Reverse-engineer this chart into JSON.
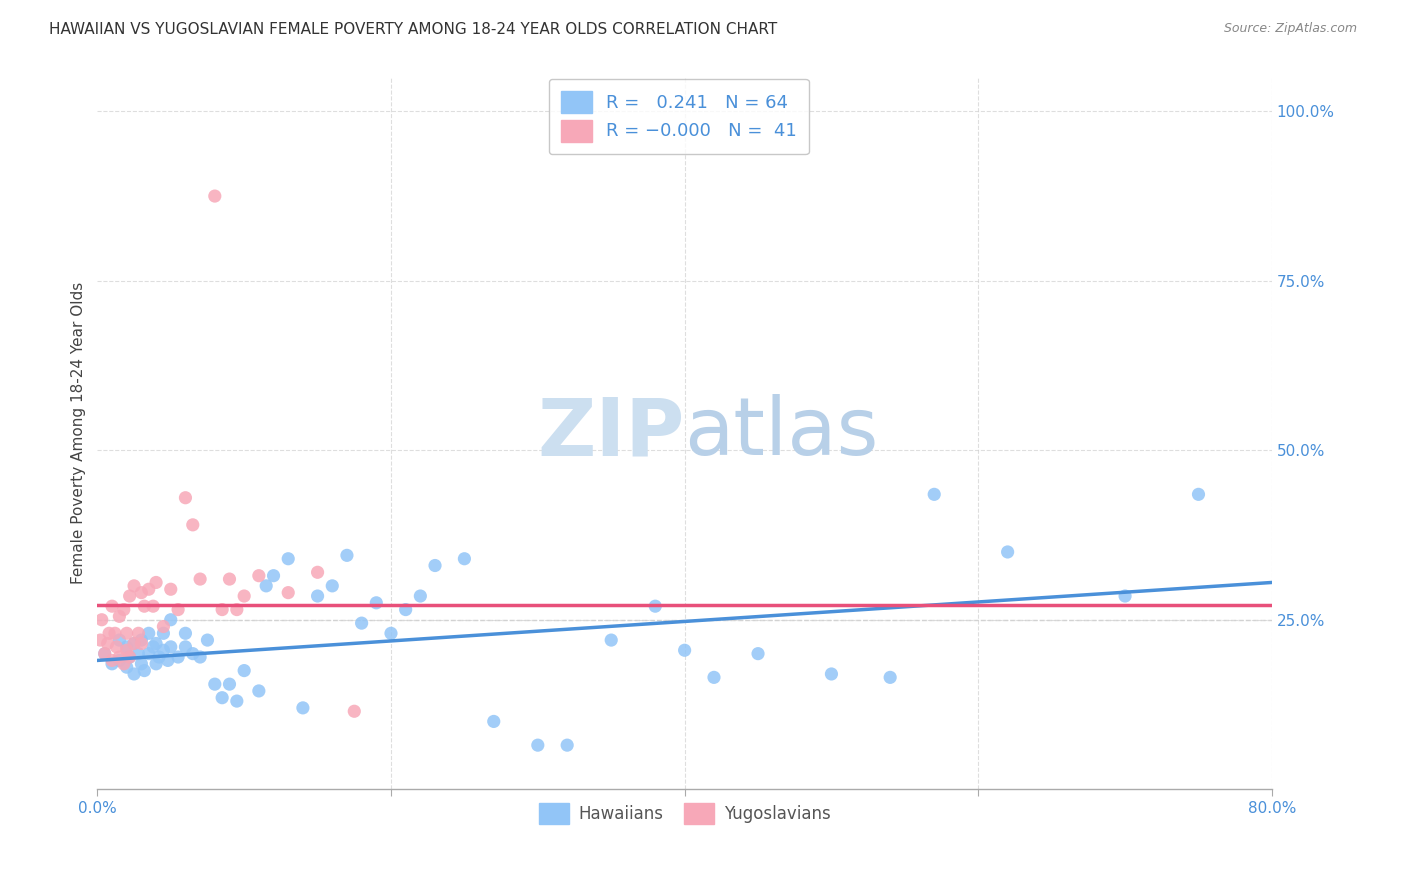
{
  "title": "HAWAIIAN VS YUGOSLAVIAN FEMALE POVERTY AMONG 18-24 YEAR OLDS CORRELATION CHART",
  "source": "Source: ZipAtlas.com",
  "ylabel": "Female Poverty Among 18-24 Year Olds",
  "xlim": [
    0.0,
    0.8
  ],
  "ylim": [
    0.0,
    1.05
  ],
  "x_ticks": [
    0.0,
    0.2,
    0.4,
    0.6,
    0.8
  ],
  "x_tick_labels": [
    "0.0%",
    "",
    "",
    "",
    "80.0%"
  ],
  "y_ticks_right": [
    0.25,
    0.5,
    0.75,
    1.0
  ],
  "y_tick_labels_right": [
    "25.0%",
    "50.0%",
    "75.0%",
    "100.0%"
  ],
  "hawaiian_R": 0.241,
  "hawaiian_N": 64,
  "yugoslavian_R": -0.0,
  "yugoslavian_N": 41,
  "hawaiian_color": "#92c5f7",
  "yugoslavian_color": "#f7a8b8",
  "trendline_hawaiian_color": "#4a90d9",
  "trendline_yugoslavian_color": "#e8507a",
  "watermark_zip": "ZIP",
  "watermark_atlas": "atlas",
  "watermark_color": "#c8dff5",
  "background_color": "#ffffff",
  "hawaiian_x": [
    0.005,
    0.01,
    0.015,
    0.015,
    0.02,
    0.02,
    0.022,
    0.025,
    0.025,
    0.028,
    0.03,
    0.03,
    0.032,
    0.035,
    0.035,
    0.038,
    0.04,
    0.04,
    0.042,
    0.045,
    0.045,
    0.048,
    0.05,
    0.05,
    0.055,
    0.06,
    0.06,
    0.065,
    0.07,
    0.075,
    0.08,
    0.085,
    0.09,
    0.095,
    0.1,
    0.11,
    0.115,
    0.12,
    0.13,
    0.14,
    0.15,
    0.16,
    0.17,
    0.18,
    0.19,
    0.2,
    0.21,
    0.22,
    0.23,
    0.25,
    0.27,
    0.3,
    0.32,
    0.35,
    0.38,
    0.4,
    0.42,
    0.45,
    0.5,
    0.54,
    0.57,
    0.62,
    0.7,
    0.75
  ],
  "hawaiian_y": [
    0.2,
    0.185,
    0.19,
    0.22,
    0.18,
    0.21,
    0.195,
    0.17,
    0.215,
    0.2,
    0.185,
    0.22,
    0.175,
    0.2,
    0.23,
    0.21,
    0.185,
    0.215,
    0.195,
    0.205,
    0.23,
    0.19,
    0.21,
    0.25,
    0.195,
    0.21,
    0.23,
    0.2,
    0.195,
    0.22,
    0.155,
    0.135,
    0.155,
    0.13,
    0.175,
    0.145,
    0.3,
    0.315,
    0.34,
    0.12,
    0.285,
    0.3,
    0.345,
    0.245,
    0.275,
    0.23,
    0.265,
    0.285,
    0.33,
    0.34,
    0.1,
    0.065,
    0.065,
    0.22,
    0.27,
    0.205,
    0.165,
    0.2,
    0.17,
    0.165,
    0.435,
    0.35,
    0.285,
    0.435
  ],
  "yugoslavian_x": [
    0.002,
    0.003,
    0.005,
    0.007,
    0.008,
    0.01,
    0.01,
    0.012,
    0.013,
    0.015,
    0.015,
    0.018,
    0.018,
    0.02,
    0.02,
    0.022,
    0.022,
    0.025,
    0.025,
    0.028,
    0.03,
    0.03,
    0.032,
    0.035,
    0.038,
    0.04,
    0.045,
    0.05,
    0.055,
    0.06,
    0.065,
    0.07,
    0.08,
    0.085,
    0.09,
    0.095,
    0.1,
    0.11,
    0.13,
    0.15,
    0.175
  ],
  "yugoslavian_y": [
    0.22,
    0.25,
    0.2,
    0.215,
    0.23,
    0.19,
    0.27,
    0.23,
    0.21,
    0.195,
    0.255,
    0.185,
    0.265,
    0.205,
    0.23,
    0.195,
    0.285,
    0.215,
    0.3,
    0.23,
    0.215,
    0.29,
    0.27,
    0.295,
    0.27,
    0.305,
    0.24,
    0.295,
    0.265,
    0.43,
    0.39,
    0.31,
    0.875,
    0.265,
    0.31,
    0.265,
    0.285,
    0.315,
    0.29,
    0.32,
    0.115
  ],
  "legend_hawaiian_label": "Hawaiians",
  "legend_yugoslavian_label": "Yugoslavians",
  "grid_color": "#d0d0d0",
  "hawaiian_trend_x0": 0.0,
  "hawaiian_trend_x1": 0.8,
  "hawaiian_trend_y0": 0.19,
  "hawaiian_trend_y1": 0.305,
  "yugoslavian_trend_y0": 0.272,
  "yugoslavian_trend_y1": 0.272
}
